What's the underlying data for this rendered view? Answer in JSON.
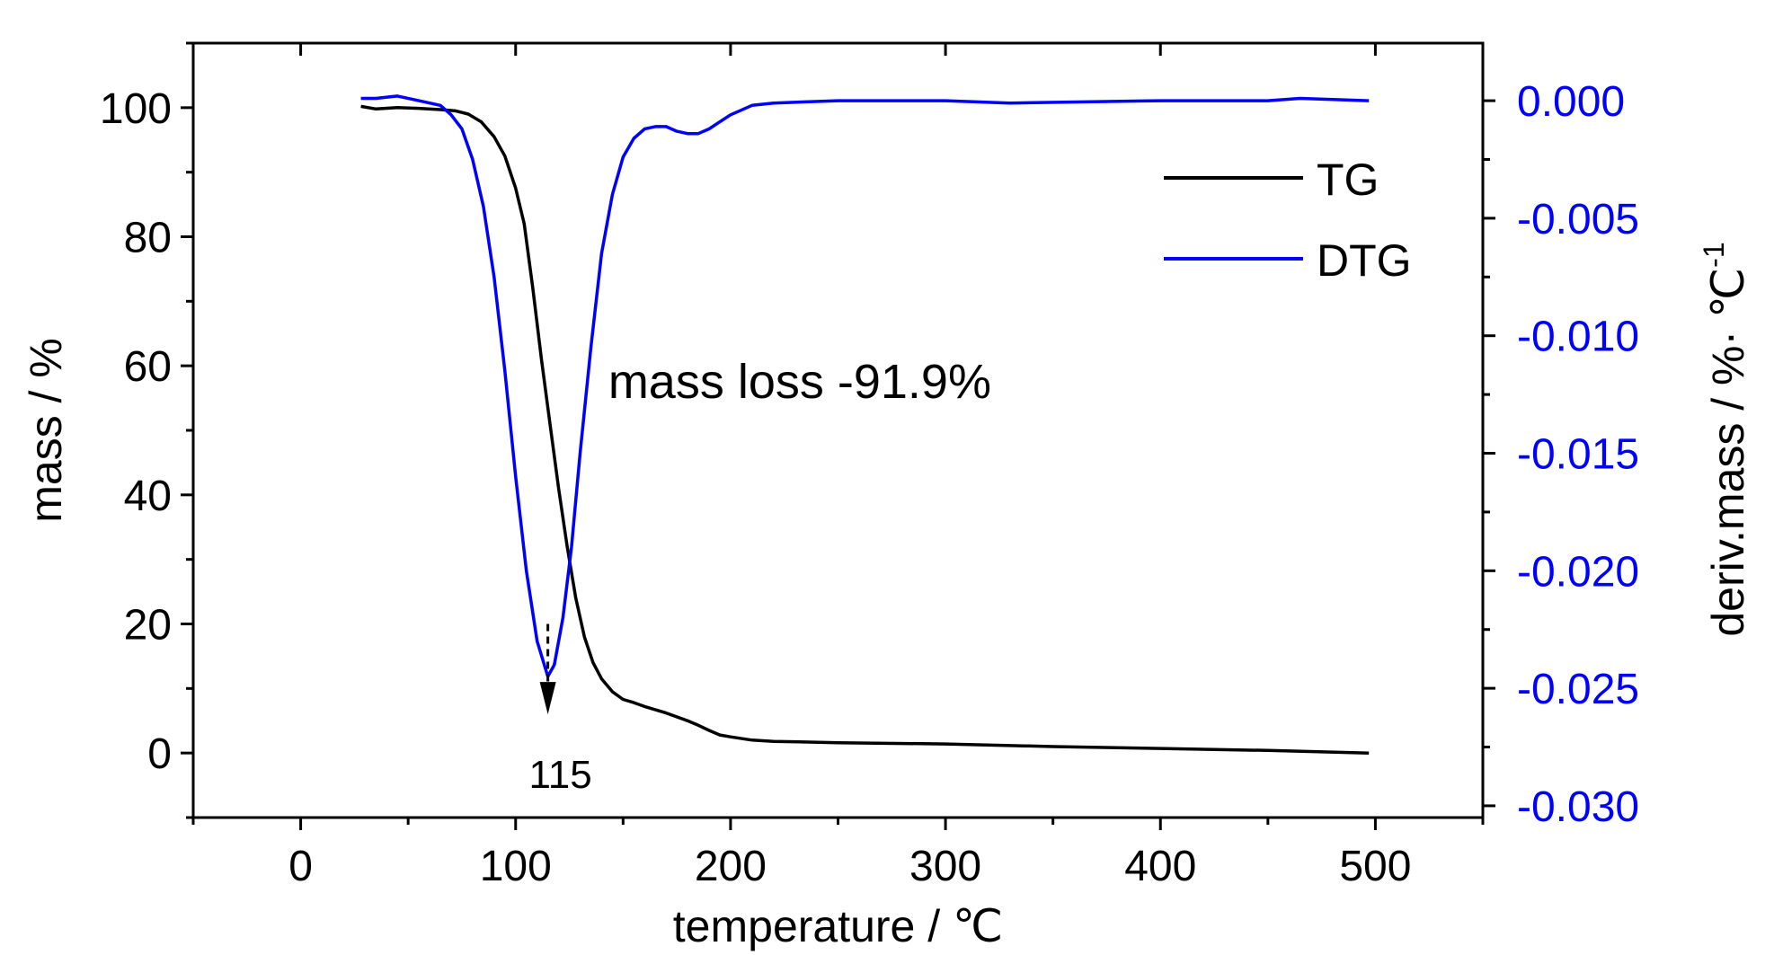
{
  "chart_data": {
    "type": "line",
    "xlabel": "temperature / ℃",
    "ylabel_left": "mass / %",
    "ylabel_right": "deriv.mass / %· ℃",
    "ylabel_right_superscript": "-1",
    "xlim": [
      -50,
      550
    ],
    "ylim_left": [
      -10,
      110
    ],
    "ylim_right": [
      -0.0305,
      0.00245
    ],
    "x_ticks": [
      0,
      100,
      200,
      300,
      400,
      500
    ],
    "x_tick_labels": [
      "0",
      "100",
      "200",
      "300",
      "400",
      "500"
    ],
    "y_left_ticks": [
      0,
      20,
      40,
      60,
      80,
      100
    ],
    "y_left_tick_labels": [
      "0",
      "20",
      "40",
      "60",
      "80",
      "100"
    ],
    "y_right_ticks": [
      0,
      -0.005,
      -0.01,
      -0.015,
      -0.02,
      -0.025,
      -0.03
    ],
    "y_right_tick_labels": [
      "0.000",
      "-0.005",
      "-0.010",
      "-0.015",
      "-0.020",
      "-0.025",
      "-0.030"
    ],
    "legend": {
      "position": "top-right",
      "entries": [
        "TG",
        "DTG"
      ]
    },
    "colors": {
      "TG": "#000000",
      "DTG": "#0000ff",
      "right_axis": "#0000ff"
    },
    "series": [
      {
        "name": "TG",
        "axis": "left",
        "x": [
          28,
          35,
          45,
          55,
          65,
          72,
          78,
          84,
          90,
          95,
          100,
          104,
          108,
          112,
          116,
          120,
          124,
          128,
          132,
          136,
          140,
          145,
          150,
          155,
          160,
          170,
          180,
          185,
          190,
          195,
          200,
          210,
          220,
          250,
          300,
          350,
          400,
          450,
          497
        ],
        "values": [
          100.2,
          99.8,
          100.0,
          99.9,
          99.7,
          99.5,
          99.0,
          97.8,
          95.5,
          92.5,
          87.5,
          82.0,
          72.0,
          61.0,
          51.0,
          41.0,
          32.0,
          24.0,
          18.0,
          14.0,
          11.5,
          9.5,
          8.3,
          7.8,
          7.2,
          6.2,
          5.0,
          4.3,
          3.5,
          2.8,
          2.5,
          2.0,
          1.8,
          1.6,
          1.4,
          1.0,
          0.7,
          0.4,
          0.0
        ]
      },
      {
        "name": "DTG",
        "axis": "right",
        "x": [
          28,
          35,
          45,
          55,
          65,
          70,
          75,
          80,
          85,
          90,
          95,
          100,
          105,
          110,
          115,
          118,
          122,
          126,
          130,
          135,
          140,
          145,
          150,
          155,
          160,
          165,
          170,
          175,
          180,
          185,
          190,
          195,
          200,
          210,
          220,
          250,
          300,
          330,
          400,
          450,
          465,
          497
        ],
        "values": [
          0.0001,
          0.0001,
          0.0002,
          0.0,
          -0.0002,
          -0.0006,
          -0.0012,
          -0.0025,
          -0.0045,
          -0.0075,
          -0.0115,
          -0.016,
          -0.02,
          -0.023,
          -0.0245,
          -0.024,
          -0.022,
          -0.019,
          -0.015,
          -0.0105,
          -0.0065,
          -0.004,
          -0.0024,
          -0.0016,
          -0.0012,
          -0.0011,
          -0.0011,
          -0.0013,
          -0.0014,
          -0.0014,
          -0.0012,
          -0.0009,
          -0.0006,
          -0.0002,
          -0.0001,
          0.0,
          0.0,
          -0.0001,
          0.0,
          0.0,
          0.0001,
          0.0
        ]
      }
    ],
    "annotations": {
      "mass_loss": {
        "text": "mass loss -91.9%",
        "x": 210,
        "y": 55
      },
      "peak": {
        "text": "115",
        "x": 115,
        "arrow_from_y": 20,
        "arrow_to_y": 6,
        "label_y": 1
      }
    }
  }
}
